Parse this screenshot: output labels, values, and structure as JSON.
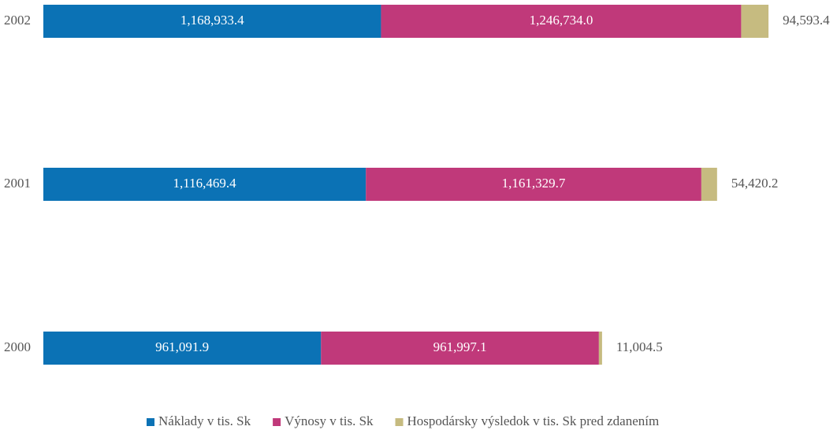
{
  "chart_data": {
    "type": "stacked-bar-horizontal",
    "categories": [
      "2002",
      "2001",
      "2000"
    ],
    "series": [
      {
        "name": "Náklady v tis. Sk",
        "color": "#0b72b5",
        "values": [
          1168933.4,
          1116469.4,
          961091.9
        ],
        "value_labels": [
          "1,168,933.4",
          "1,116,469.4",
          "961,091.9"
        ]
      },
      {
        "name": "Výnosy v tis. Sk",
        "color": "#c0397a",
        "values": [
          1246734.0,
          1161329.7,
          961997.1
        ],
        "value_labels": [
          "1,246,734.0",
          "1,161,329.7",
          "961,997.1"
        ]
      },
      {
        "name": "Hospodársky výsledok v tis. Sk pred zdanením",
        "color": "#c6bb80",
        "values": [
          94593.4,
          54420.2,
          11004.5
        ],
        "value_labels": [
          "94,593.4",
          "54,420.2",
          "11,004.5"
        ]
      }
    ],
    "xlim": [
      0,
      2510000
    ],
    "legend": "bottom"
  }
}
